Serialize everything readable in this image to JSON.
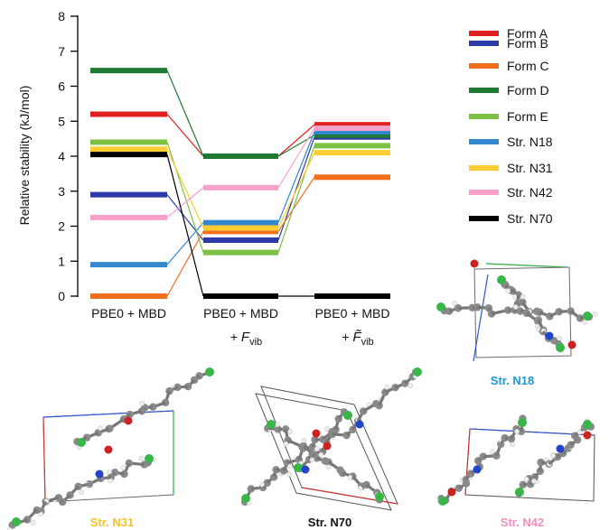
{
  "chart_data": {
    "type": "line",
    "ylabel": "Relative stability (kJ/mol)",
    "ylim": [
      0,
      8
    ],
    "yticks": [
      "0",
      "1",
      "2",
      "3",
      "4",
      "5",
      "6",
      "7",
      "8"
    ],
    "categories": [
      "PBE0 + MBD",
      "PBE0 + MBD + Fvib",
      "PBE0 + MBD + F̃vib"
    ],
    "category_labels": [
      {
        "main": "PBE0 + MBD",
        "prefix": "",
        "symbol": "",
        "sub": ""
      },
      {
        "main": "PBE0 + MBD",
        "prefix": "+ ",
        "symbol": "F",
        "sub": "vib"
      },
      {
        "main": "PBE0 + MBD",
        "prefix": "+ ",
        "symbol": "F̃",
        "sub": "vib"
      }
    ],
    "series": [
      {
        "name": "Form A",
        "color": "#e02020",
        "values": [
          5.2,
          4.0,
          4.9
        ]
      },
      {
        "name": "Form B",
        "color": "#2b3aa8",
        "values": [
          2.9,
          1.6,
          4.55
        ]
      },
      {
        "name": "Form C",
        "color": "#f07020",
        "values": [
          0.0,
          1.85,
          3.4
        ]
      },
      {
        "name": "Form D",
        "color": "#1e7a32",
        "values": [
          6.45,
          4.0,
          4.6
        ]
      },
      {
        "name": "Form E",
        "color": "#7cc143",
        "values": [
          4.4,
          1.25,
          4.3
        ]
      },
      {
        "name": "Str. N18",
        "color": "#3388d0",
        "values": [
          0.9,
          2.1,
          4.7
        ]
      },
      {
        "name": "Str. N31",
        "color": "#ffcc33",
        "values": [
          4.2,
          1.95,
          4.1
        ]
      },
      {
        "name": "Str. N42",
        "color": "#f7a0c8",
        "values": [
          2.25,
          3.1,
          4.8
        ]
      },
      {
        "name": "Str. N70",
        "color": "#000000",
        "values": [
          4.05,
          0.0,
          0.0
        ]
      }
    ]
  },
  "structures": [
    {
      "label": "Str. N18",
      "color": "#1a9ad6"
    },
    {
      "label": "Str. N31",
      "color": "#f2c230"
    },
    {
      "label": "Str. N70",
      "color": "#111111"
    },
    {
      "label": "Str. N42",
      "color": "#f090c0"
    }
  ]
}
